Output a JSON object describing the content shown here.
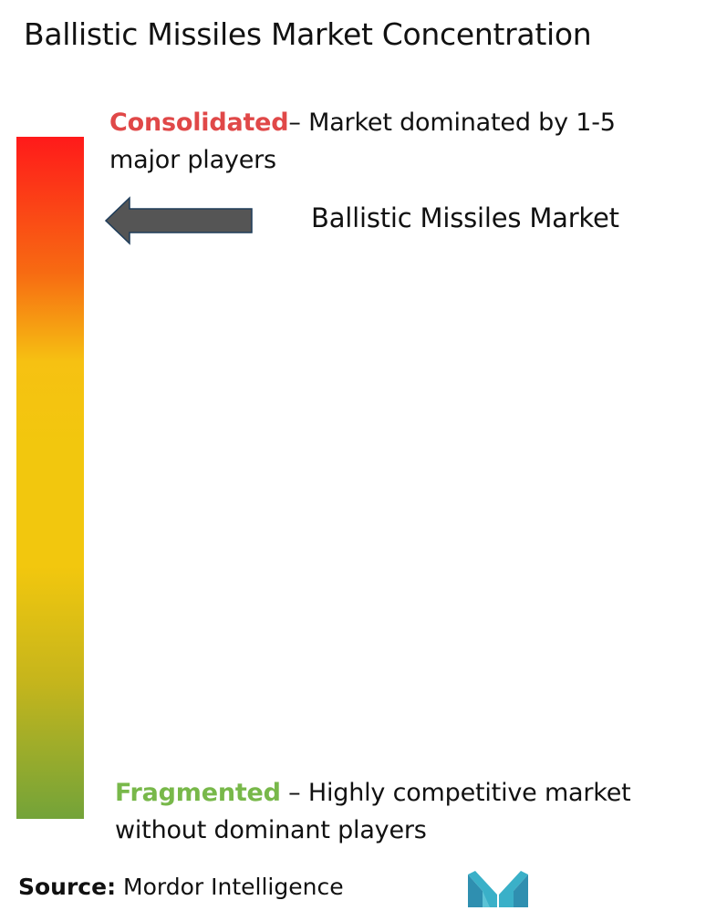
{
  "title": "Ballistic Missiles Market Concentration",
  "consolidated": {
    "keyword": "Consolidated",
    "description": "– Market dominated by 1-5 major players"
  },
  "fragmented": {
    "keyword": "Fragmented",
    "description": " – Highly competitive market without dominant players"
  },
  "market_label": "Ballistic Missiles Market",
  "source": {
    "label": "Source:",
    "value": " Mordor Intelligence"
  },
  "icons": {
    "arrow": "left-arrow-icon",
    "logo": "mordor-intelligence-logo"
  },
  "colors": {
    "consolidated": "#e04848",
    "fragmented": "#78b84a",
    "arrow": "#555555",
    "logo": "#3ab0c8"
  }
}
